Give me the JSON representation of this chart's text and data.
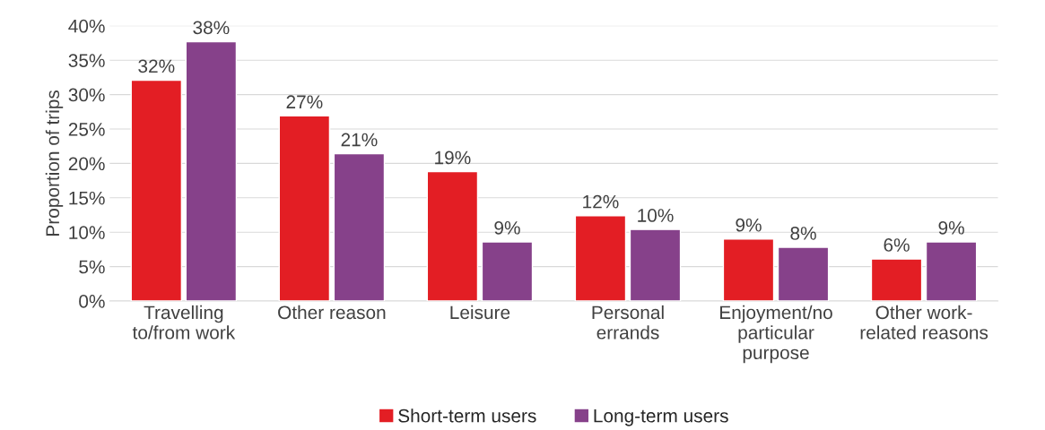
{
  "chart_data": {
    "type": "bar",
    "ylabel": "Proportion of trips",
    "categories": [
      "Travelling\nto/from work",
      "Other reason",
      "Leisure",
      "Personal\nerrands",
      "Enjoyment/no\nparticular\npurpose",
      "Other work-\nrelated reasons"
    ],
    "series": [
      {
        "name": "Short-term users",
        "color": "#e31e24",
        "values": [
          32.1,
          26.9,
          18.8,
          12.4,
          9.0,
          6.1
        ],
        "value_labels": [
          "32%",
          "27%",
          "19%",
          "12%",
          "9%",
          "6%"
        ]
      },
      {
        "name": "Long-term users",
        "color": "#86418a",
        "values": [
          37.7,
          21.4,
          8.6,
          10.4,
          7.8,
          8.6
        ],
        "value_labels": [
          "38%",
          "21%",
          "9%",
          "10%",
          "8%",
          "9%"
        ]
      }
    ],
    "ylim": [
      0,
      40
    ],
    "yticks": [
      {
        "value": 0,
        "label": "0%"
      },
      {
        "value": 5,
        "label": "5%"
      },
      {
        "value": 10,
        "label": "10%"
      },
      {
        "value": 15,
        "label": "15%"
      },
      {
        "value": 20,
        "label": "20%"
      },
      {
        "value": 25,
        "label": "25%"
      },
      {
        "value": 30,
        "label": "30%"
      },
      {
        "value": 35,
        "label": "35%"
      },
      {
        "value": 40,
        "label": "40%"
      }
    ],
    "grid": "y",
    "legend": "bottom"
  }
}
